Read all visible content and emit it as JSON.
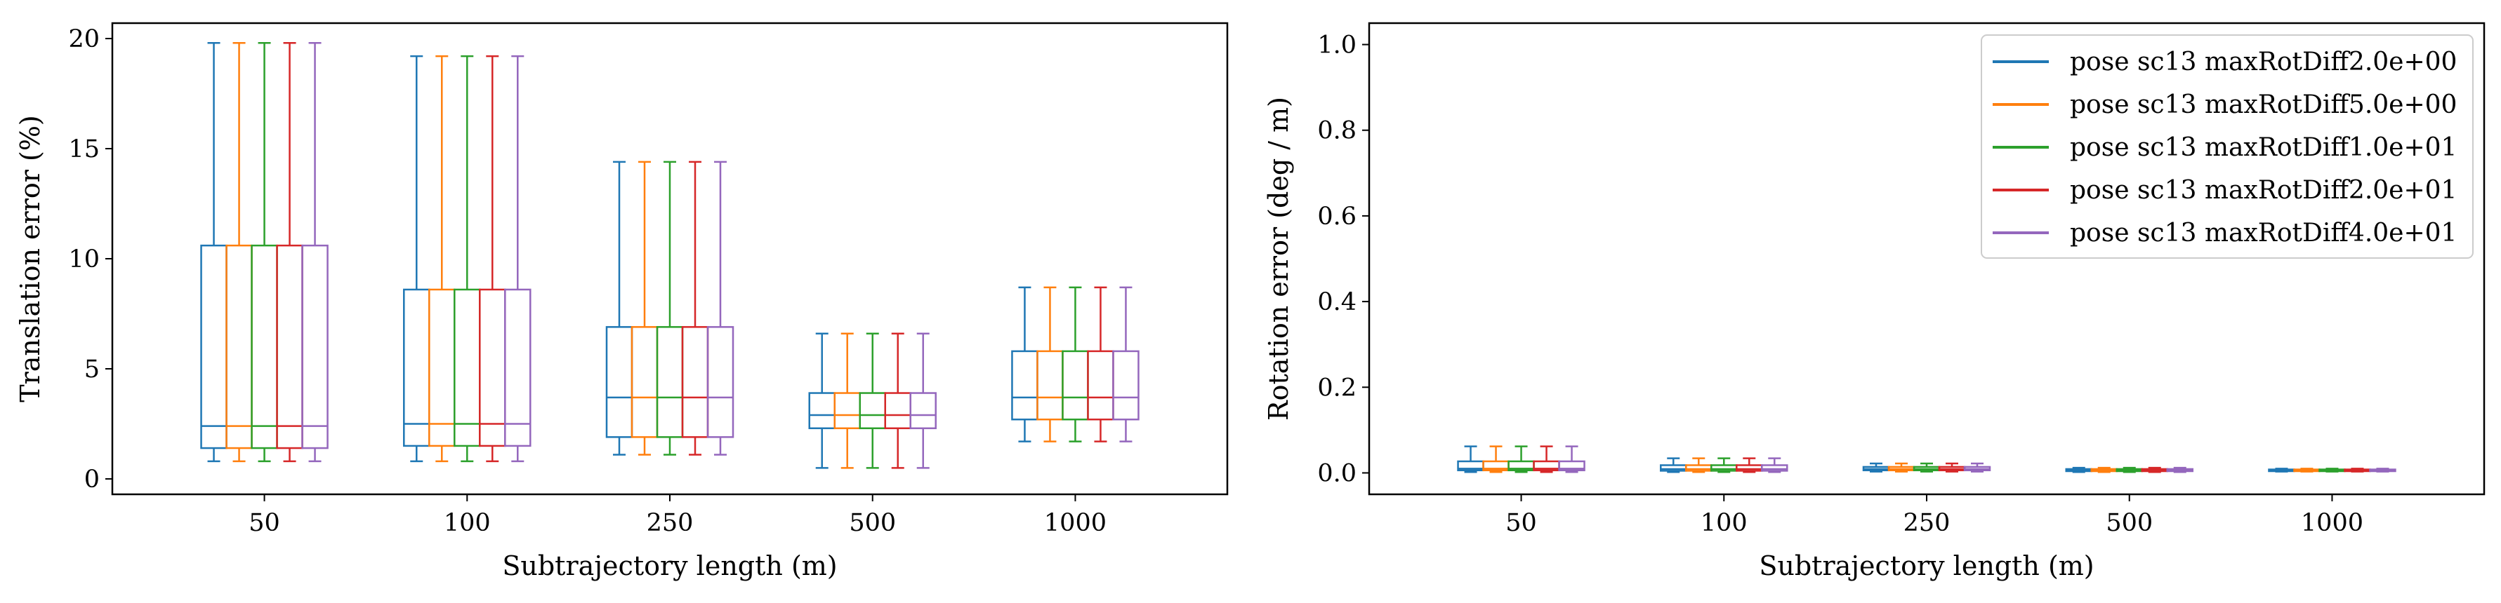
{
  "figure": {
    "colors": [
      "#1f77b4",
      "#ff7f0e",
      "#2ca02c",
      "#d62728",
      "#9467bd"
    ]
  },
  "chart_data": [
    {
      "type": "box",
      "xlabel": "Subtrajectory length (m)",
      "ylabel": "Translation error (%)",
      "categories": [
        "50",
        "100",
        "250",
        "500",
        "1000"
      ],
      "ylim": [
        -0.7,
        20.7
      ],
      "yticks": [
        0,
        5,
        10,
        15,
        20
      ],
      "grid": false,
      "series": [
        {
          "boxes": [
            {
              "whislo": 0.8,
              "q1": 1.4,
              "med": 2.4,
              "q3": 10.6,
              "whishi": 19.8
            },
            {
              "whislo": 0.8,
              "q1": 1.5,
              "med": 2.5,
              "q3": 8.6,
              "whishi": 19.2
            },
            {
              "whislo": 1.1,
              "q1": 1.9,
              "med": 3.7,
              "q3": 6.9,
              "whishi": 14.4
            },
            {
              "whislo": 0.5,
              "q1": 2.3,
              "med": 2.9,
              "q3": 3.9,
              "whishi": 6.6
            },
            {
              "whislo": 1.7,
              "q1": 2.7,
              "med": 3.7,
              "q3": 5.8,
              "whishi": 8.7
            }
          ]
        },
        {
          "boxes": [
            {
              "whislo": 0.8,
              "q1": 1.4,
              "med": 2.4,
              "q3": 10.6,
              "whishi": 19.8
            },
            {
              "whislo": 0.8,
              "q1": 1.5,
              "med": 2.5,
              "q3": 8.6,
              "whishi": 19.2
            },
            {
              "whislo": 1.1,
              "q1": 1.9,
              "med": 3.7,
              "q3": 6.9,
              "whishi": 14.4
            },
            {
              "whislo": 0.5,
              "q1": 2.3,
              "med": 2.9,
              "q3": 3.9,
              "whishi": 6.6
            },
            {
              "whislo": 1.7,
              "q1": 2.7,
              "med": 3.7,
              "q3": 5.8,
              "whishi": 8.7
            }
          ]
        },
        {
          "boxes": [
            {
              "whislo": 0.8,
              "q1": 1.4,
              "med": 2.4,
              "q3": 10.6,
              "whishi": 19.8
            },
            {
              "whislo": 0.8,
              "q1": 1.5,
              "med": 2.5,
              "q3": 8.6,
              "whishi": 19.2
            },
            {
              "whislo": 1.1,
              "q1": 1.9,
              "med": 3.7,
              "q3": 6.9,
              "whishi": 14.4
            },
            {
              "whislo": 0.5,
              "q1": 2.3,
              "med": 2.9,
              "q3": 3.9,
              "whishi": 6.6
            },
            {
              "whislo": 1.7,
              "q1": 2.7,
              "med": 3.7,
              "q3": 5.8,
              "whishi": 8.7
            }
          ]
        },
        {
          "boxes": [
            {
              "whislo": 0.8,
              "q1": 1.4,
              "med": 2.4,
              "q3": 10.6,
              "whishi": 19.8
            },
            {
              "whislo": 0.8,
              "q1": 1.5,
              "med": 2.5,
              "q3": 8.6,
              "whishi": 19.2
            },
            {
              "whislo": 1.1,
              "q1": 1.9,
              "med": 3.7,
              "q3": 6.9,
              "whishi": 14.4
            },
            {
              "whislo": 0.5,
              "q1": 2.3,
              "med": 2.9,
              "q3": 3.9,
              "whishi": 6.6
            },
            {
              "whislo": 1.7,
              "q1": 2.7,
              "med": 3.7,
              "q3": 5.8,
              "whishi": 8.7
            }
          ]
        },
        {
          "boxes": [
            {
              "whislo": 0.8,
              "q1": 1.4,
              "med": 2.4,
              "q3": 10.6,
              "whishi": 19.8
            },
            {
              "whislo": 0.8,
              "q1": 1.5,
              "med": 2.5,
              "q3": 8.6,
              "whishi": 19.2
            },
            {
              "whislo": 1.1,
              "q1": 1.9,
              "med": 3.7,
              "q3": 6.9,
              "whishi": 14.4
            },
            {
              "whislo": 0.5,
              "q1": 2.3,
              "med": 2.9,
              "q3": 3.9,
              "whishi": 6.6
            },
            {
              "whislo": 1.7,
              "q1": 2.7,
              "med": 3.7,
              "q3": 5.8,
              "whishi": 8.7
            }
          ]
        }
      ]
    },
    {
      "type": "box",
      "xlabel": "Subtrajectory length (m)",
      "ylabel": "Rotation error (deg / m)",
      "categories": [
        "50",
        "100",
        "250",
        "500",
        "1000"
      ],
      "ylim": [
        -0.05,
        1.05
      ],
      "yticks": [
        0.0,
        0.2,
        0.4,
        0.6,
        0.8,
        1.0
      ],
      "tick_labels": [
        "0.0",
        "0.2",
        "0.4",
        "0.6",
        "0.8",
        "1.0"
      ],
      "grid": false,
      "legend": {
        "placement": "top-right",
        "labels": [
          "pose sc13 maxRotDiff2.0e+00",
          "pose sc13 maxRotDiff5.0e+00",
          "pose sc13 maxRotDiff1.0e+01",
          "pose sc13 maxRotDiff2.0e+01",
          "pose sc13 maxRotDiff4.0e+01"
        ]
      },
      "series": [
        {
          "name": "pose sc13 maxRotDiff2.0e+00",
          "boxes": [
            {
              "whislo": 0.002,
              "q1": 0.006,
              "med": 0.01,
              "q3": 0.027,
              "whishi": 0.062
            },
            {
              "whislo": 0.002,
              "q1": 0.005,
              "med": 0.009,
              "q3": 0.018,
              "whishi": 0.034
            },
            {
              "whislo": 0.003,
              "q1": 0.006,
              "med": 0.009,
              "q3": 0.014,
              "whishi": 0.022
            },
            {
              "whislo": 0.002,
              "q1": 0.004,
              "med": 0.006,
              "q3": 0.009,
              "whishi": 0.012
            },
            {
              "whislo": 0.003,
              "q1": 0.004,
              "med": 0.006,
              "q3": 0.008,
              "whishi": 0.01
            }
          ]
        },
        {
          "name": "pose sc13 maxRotDiff5.0e+00",
          "boxes": [
            {
              "whislo": 0.002,
              "q1": 0.006,
              "med": 0.01,
              "q3": 0.027,
              "whishi": 0.062
            },
            {
              "whislo": 0.002,
              "q1": 0.005,
              "med": 0.009,
              "q3": 0.018,
              "whishi": 0.034
            },
            {
              "whislo": 0.003,
              "q1": 0.006,
              "med": 0.009,
              "q3": 0.014,
              "whishi": 0.022
            },
            {
              "whislo": 0.002,
              "q1": 0.004,
              "med": 0.006,
              "q3": 0.009,
              "whishi": 0.012
            },
            {
              "whislo": 0.003,
              "q1": 0.004,
              "med": 0.006,
              "q3": 0.008,
              "whishi": 0.01
            }
          ]
        },
        {
          "name": "pose sc13 maxRotDiff1.0e+01",
          "boxes": [
            {
              "whislo": 0.002,
              "q1": 0.006,
              "med": 0.01,
              "q3": 0.027,
              "whishi": 0.062
            },
            {
              "whislo": 0.002,
              "q1": 0.005,
              "med": 0.009,
              "q3": 0.018,
              "whishi": 0.034
            },
            {
              "whislo": 0.003,
              "q1": 0.006,
              "med": 0.009,
              "q3": 0.014,
              "whishi": 0.022
            },
            {
              "whislo": 0.002,
              "q1": 0.004,
              "med": 0.006,
              "q3": 0.009,
              "whishi": 0.012
            },
            {
              "whislo": 0.003,
              "q1": 0.004,
              "med": 0.006,
              "q3": 0.008,
              "whishi": 0.01
            }
          ]
        },
        {
          "name": "pose sc13 maxRotDiff2.0e+01",
          "boxes": [
            {
              "whislo": 0.002,
              "q1": 0.006,
              "med": 0.01,
              "q3": 0.027,
              "whishi": 0.062
            },
            {
              "whislo": 0.002,
              "q1": 0.005,
              "med": 0.009,
              "q3": 0.018,
              "whishi": 0.034
            },
            {
              "whislo": 0.003,
              "q1": 0.006,
              "med": 0.009,
              "q3": 0.014,
              "whishi": 0.022
            },
            {
              "whislo": 0.002,
              "q1": 0.004,
              "med": 0.006,
              "q3": 0.009,
              "whishi": 0.012
            },
            {
              "whislo": 0.003,
              "q1": 0.004,
              "med": 0.006,
              "q3": 0.008,
              "whishi": 0.01
            }
          ]
        },
        {
          "name": "pose sc13 maxRotDiff4.0e+01",
          "boxes": [
            {
              "whislo": 0.002,
              "q1": 0.006,
              "med": 0.01,
              "q3": 0.027,
              "whishi": 0.062
            },
            {
              "whislo": 0.002,
              "q1": 0.005,
              "med": 0.009,
              "q3": 0.018,
              "whishi": 0.034
            },
            {
              "whislo": 0.003,
              "q1": 0.006,
              "med": 0.009,
              "q3": 0.014,
              "whishi": 0.022
            },
            {
              "whislo": 0.002,
              "q1": 0.004,
              "med": 0.006,
              "q3": 0.009,
              "whishi": 0.012
            },
            {
              "whislo": 0.003,
              "q1": 0.004,
              "med": 0.006,
              "q3": 0.008,
              "whishi": 0.01
            }
          ]
        }
      ]
    }
  ]
}
